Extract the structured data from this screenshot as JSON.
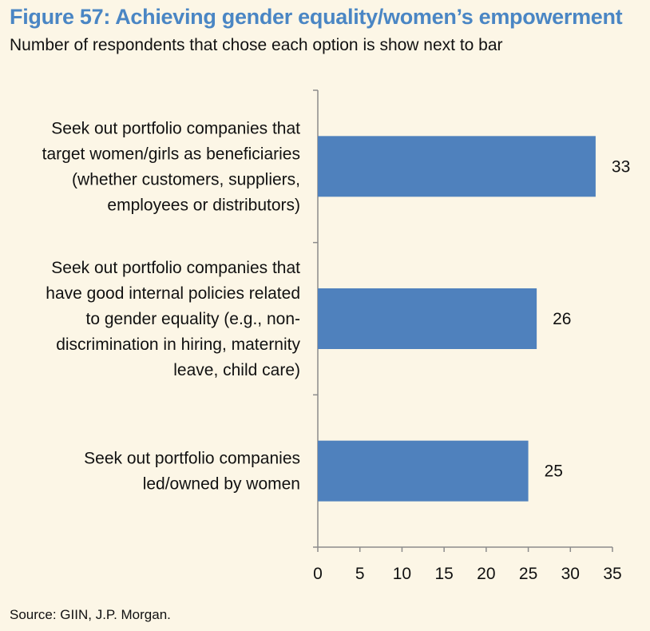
{
  "figure": {
    "title": "Figure 57: Achieving gender equality/women’s empowerment",
    "subtitle": "Number of respondents that chose each option is show next to bar",
    "source": "Source: GIIN, J.P. Morgan."
  },
  "chart_data": {
    "type": "bar",
    "orientation": "horizontal",
    "categories": [
      [
        "Seek out portfolio companies that",
        "target women/girls as beneficiaries",
        "(whether customers, suppliers,",
        "employees or distributors)"
      ],
      [
        "Seek out portfolio companies that",
        "have good internal policies related",
        "to gender equality (e.g., non-",
        "discrimination in hiring, maternity",
        "leave, child care)"
      ],
      [
        "Seek out portfolio companies",
        "led/owned by women"
      ]
    ],
    "values": [
      33,
      26,
      25
    ],
    "data_labels": [
      "33",
      "26",
      "25"
    ],
    "xlim": [
      0,
      35
    ],
    "xticks": [
      "0",
      "5",
      "10",
      "15",
      "20",
      "25",
      "30",
      "35"
    ],
    "grid": false,
    "bar_color": "#4f81bd",
    "xlabel": "",
    "ylabel": ""
  }
}
